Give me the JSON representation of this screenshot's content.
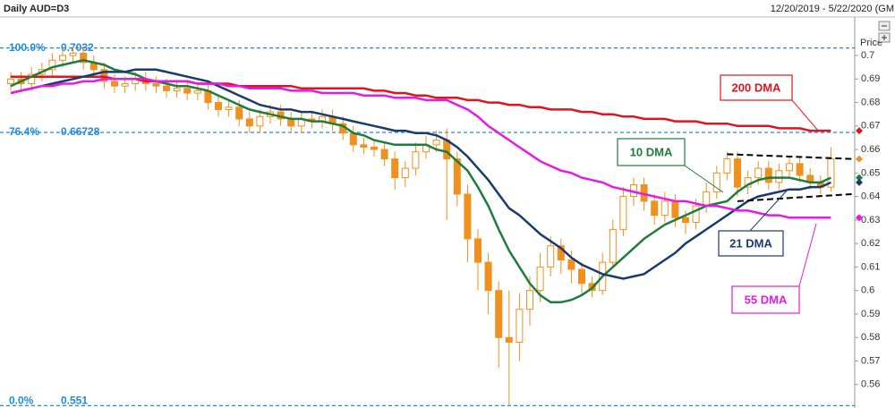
{
  "chart_data": {
    "type": "candlestick",
    "title": "Daily AUD=D3",
    "subtitle": "12/20/2019 - 5/22/2020 (GM",
    "y_axis_label": "Price",
    "categories": [
      null,
      null,
      null,
      null,
      null,
      null,
      null,
      null,
      null,
      null,
      null,
      null,
      null,
      null,
      null,
      null,
      null,
      null,
      null,
      null,
      null,
      null,
      null,
      null,
      null,
      null,
      null,
      null,
      null,
      null,
      null,
      null,
      null,
      null,
      null,
      null,
      null,
      null,
      null,
      null,
      null,
      null,
      null,
      null,
      null,
      null,
      null,
      null,
      null,
      null,
      null,
      null,
      null,
      null,
      null,
      null,
      null,
      null,
      null,
      null,
      null,
      null,
      null,
      null,
      null,
      null,
      null,
      null,
      null,
      null,
      null,
      null,
      null,
      null,
      null,
      null,
      null,
      null,
      null,
      null
    ],
    "open": [
      0.688,
      0.69,
      0.688,
      0.692,
      0.694,
      0.698,
      0.7,
      0.701,
      0.697,
      0.694,
      0.689,
      0.687,
      0.688,
      0.69,
      0.688,
      0.687,
      0.685,
      0.686,
      0.684,
      0.685,
      0.68,
      0.677,
      0.678,
      0.673,
      0.67,
      0.674,
      0.676,
      0.673,
      0.67,
      0.673,
      0.672,
      0.674,
      0.671,
      0.667,
      0.662,
      0.661,
      0.66,
      0.656,
      0.648,
      0.652,
      0.659,
      0.662,
      0.664,
      0.656,
      0.641,
      0.622,
      0.612,
      0.6,
      0.58,
      0.578,
      0.592,
      0.6,
      0.61,
      0.619,
      0.613,
      0.609,
      0.603,
      0.6,
      0.612,
      0.626,
      0.64,
      0.645,
      0.638,
      0.632,
      0.638,
      0.631,
      0.629,
      0.636,
      0.642,
      0.65,
      0.656,
      0.644,
      0.648,
      0.652,
      0.646,
      0.651,
      0.654,
      0.649,
      0.646,
      0.644
    ],
    "high": [
      0.693,
      0.693,
      0.695,
      0.697,
      0.701,
      0.703,
      0.704,
      0.704,
      0.7,
      0.697,
      0.692,
      0.691,
      0.693,
      0.693,
      0.691,
      0.69,
      0.689,
      0.689,
      0.688,
      0.688,
      0.683,
      0.681,
      0.681,
      0.676,
      0.677,
      0.679,
      0.679,
      0.676,
      0.676,
      0.676,
      0.677,
      0.677,
      0.674,
      0.67,
      0.665,
      0.664,
      0.663,
      0.659,
      0.655,
      0.663,
      0.666,
      0.668,
      0.669,
      0.659,
      0.645,
      0.626,
      0.616,
      0.604,
      0.6,
      0.599,
      0.606,
      0.616,
      0.623,
      0.622,
      0.617,
      0.612,
      0.606,
      0.616,
      0.63,
      0.644,
      0.648,
      0.648,
      0.641,
      0.642,
      0.641,
      0.634,
      0.639,
      0.646,
      0.653,
      0.659,
      0.659,
      0.651,
      0.655,
      0.655,
      0.654,
      0.657,
      0.657,
      0.652,
      0.649,
      0.661
    ],
    "low": [
      0.685,
      0.685,
      0.685,
      0.689,
      0.691,
      0.695,
      0.697,
      0.694,
      0.691,
      0.686,
      0.684,
      0.684,
      0.685,
      0.685,
      0.684,
      0.682,
      0.682,
      0.681,
      0.681,
      0.677,
      0.674,
      0.674,
      0.67,
      0.667,
      0.667,
      0.671,
      0.67,
      0.667,
      0.667,
      0.669,
      0.669,
      0.668,
      0.664,
      0.659,
      0.658,
      0.657,
      0.653,
      0.643,
      0.644,
      0.649,
      0.656,
      0.659,
      0.63,
      0.636,
      0.612,
      0.6,
      0.59,
      0.567,
      0.551,
      0.57,
      0.585,
      0.595,
      0.606,
      0.607,
      0.603,
      0.598,
      0.597,
      0.598,
      0.61,
      0.623,
      0.636,
      0.634,
      0.628,
      0.629,
      0.627,
      0.624,
      0.626,
      0.633,
      0.639,
      0.647,
      0.64,
      0.641,
      0.645,
      0.643,
      0.643,
      0.648,
      0.646,
      0.643,
      0.641,
      0.642
    ],
    "close": [
      0.69,
      0.688,
      0.692,
      0.694,
      0.698,
      0.7,
      0.701,
      0.697,
      0.694,
      0.689,
      0.687,
      0.688,
      0.69,
      0.688,
      0.687,
      0.685,
      0.686,
      0.684,
      0.685,
      0.68,
      0.677,
      0.678,
      0.673,
      0.67,
      0.674,
      0.676,
      0.673,
      0.67,
      0.673,
      0.672,
      0.674,
      0.671,
      0.667,
      0.662,
      0.661,
      0.66,
      0.656,
      0.648,
      0.652,
      0.659,
      0.662,
      0.664,
      0.656,
      0.641,
      0.622,
      0.612,
      0.6,
      0.58,
      0.578,
      0.592,
      0.6,
      0.61,
      0.619,
      0.613,
      0.609,
      0.603,
      0.6,
      0.612,
      0.626,
      0.64,
      0.645,
      0.638,
      0.632,
      0.638,
      0.631,
      0.629,
      0.636,
      0.642,
      0.65,
      0.656,
      0.644,
      0.648,
      0.652,
      0.646,
      0.651,
      0.654,
      0.649,
      0.646,
      0.644,
      0.656
    ],
    "candle_color": "#f0901e",
    "series": [
      {
        "name": "200 DMA",
        "color": "#e0141e",
        "values": [
          0.691,
          0.691,
          0.691,
          0.691,
          0.691,
          0.691,
          0.691,
          0.691,
          0.691,
          0.691,
          0.69,
          0.69,
          0.69,
          0.689,
          0.689,
          0.689,
          0.689,
          0.689,
          0.688,
          0.688,
          0.688,
          0.688,
          0.687,
          0.687,
          0.687,
          0.687,
          0.687,
          0.687,
          0.686,
          0.686,
          0.686,
          0.686,
          0.686,
          0.686,
          0.686,
          0.685,
          0.685,
          0.684,
          0.684,
          0.683,
          0.683,
          0.682,
          0.682,
          0.682,
          0.681,
          0.681,
          0.68,
          0.68,
          0.679,
          0.679,
          0.678,
          0.678,
          0.677,
          0.677,
          0.677,
          0.676,
          0.676,
          0.675,
          0.675,
          0.674,
          0.674,
          0.673,
          0.673,
          0.673,
          0.672,
          0.672,
          0.672,
          0.671,
          0.671,
          0.671,
          0.67,
          0.67,
          0.67,
          0.67,
          0.669,
          0.669,
          0.669,
          0.668,
          0.668,
          0.668
        ]
      },
      {
        "name": "10 DMA",
        "color": "#1e7d3c",
        "values": [
          0.687,
          0.689,
          0.691,
          0.693,
          0.695,
          0.696,
          0.697,
          0.698,
          0.697,
          0.696,
          0.694,
          0.693,
          0.692,
          0.69,
          0.689,
          0.688,
          0.687,
          0.687,
          0.686,
          0.685,
          0.683,
          0.681,
          0.679,
          0.677,
          0.676,
          0.675,
          0.674,
          0.673,
          0.673,
          0.672,
          0.672,
          0.671,
          0.67,
          0.667,
          0.666,
          0.664,
          0.663,
          0.662,
          0.662,
          0.662,
          0.662,
          0.66,
          0.659,
          0.655,
          0.651,
          0.644,
          0.636,
          0.626,
          0.617,
          0.61,
          0.603,
          0.598,
          0.595,
          0.595,
          0.596,
          0.598,
          0.601,
          0.606,
          0.61,
          0.614,
          0.618,
          0.622,
          0.625,
          0.628,
          0.63,
          0.632,
          0.634,
          0.636,
          0.637,
          0.638,
          0.642,
          0.645,
          0.647,
          0.648,
          0.648,
          0.648,
          0.647,
          0.646,
          0.646,
          0.648
        ]
      },
      {
        "name": "21 DMA",
        "color": "#1a3a6e",
        "values": [
          0.684,
          0.685,
          0.686,
          0.687,
          0.688,
          0.689,
          0.69,
          0.691,
          0.692,
          0.693,
          0.693,
          0.693,
          0.694,
          0.694,
          0.694,
          0.693,
          0.692,
          0.691,
          0.69,
          0.689,
          0.687,
          0.685,
          0.683,
          0.681,
          0.679,
          0.678,
          0.677,
          0.677,
          0.676,
          0.676,
          0.675,
          0.674,
          0.673,
          0.672,
          0.671,
          0.67,
          0.669,
          0.668,
          0.668,
          0.667,
          0.667,
          0.666,
          0.664,
          0.661,
          0.657,
          0.652,
          0.647,
          0.641,
          0.635,
          0.632,
          0.628,
          0.624,
          0.621,
          0.618,
          0.614,
          0.611,
          0.609,
          0.607,
          0.606,
          0.605,
          0.606,
          0.607,
          0.61,
          0.613,
          0.616,
          0.62,
          0.623,
          0.626,
          0.629,
          0.632,
          0.635,
          0.638,
          0.64,
          0.641,
          0.642,
          0.643,
          0.643,
          0.644,
          0.644,
          0.646
        ]
      },
      {
        "name": "55 DMA",
        "color": "#e619e6",
        "values": [
          0.684,
          0.685,
          0.686,
          0.687,
          0.687,
          0.688,
          0.688,
          0.689,
          0.689,
          0.69,
          0.69,
          0.69,
          0.69,
          0.69,
          0.689,
          0.689,
          0.689,
          0.689,
          0.688,
          0.688,
          0.688,
          0.687,
          0.687,
          0.686,
          0.686,
          0.686,
          0.686,
          0.685,
          0.685,
          0.685,
          0.684,
          0.684,
          0.684,
          0.684,
          0.683,
          0.683,
          0.683,
          0.682,
          0.682,
          0.682,
          0.681,
          0.681,
          0.681,
          0.679,
          0.677,
          0.674,
          0.67,
          0.667,
          0.664,
          0.661,
          0.658,
          0.655,
          0.653,
          0.651,
          0.65,
          0.648,
          0.647,
          0.646,
          0.644,
          0.643,
          0.642,
          0.641,
          0.64,
          0.639,
          0.638,
          0.638,
          0.637,
          0.636,
          0.636,
          0.635,
          0.634,
          0.634,
          0.633,
          0.632,
          0.632,
          0.631,
          0.631,
          0.631,
          0.631,
          0.631
        ]
      }
    ],
    "fib_levels": [
      {
        "label": "100.0%",
        "value": 0.7032
      },
      {
        "label": "76.4%",
        "value": 0.66728
      },
      {
        "label": "0.0%",
        "value": 0.551
      }
    ],
    "trendlines": [
      {
        "x": [
          69,
          81
        ],
        "values": [
          0.658,
          0.656
        ]
      },
      {
        "x": [
          70,
          81
        ],
        "values": [
          0.638,
          0.641
        ]
      }
    ],
    "ylim": [
      0.55,
      0.716
    ],
    "yticks": [
      0.56,
      0.57,
      0.58,
      0.59,
      0.6,
      0.61,
      0.62,
      0.63,
      0.64,
      0.65,
      0.66,
      0.67,
      0.68,
      0.69,
      0.7
    ],
    "grid": false
  }
}
